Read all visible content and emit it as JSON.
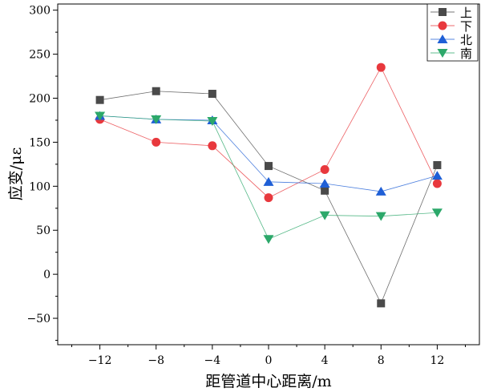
{
  "chart_data": {
    "type": "line",
    "xlabel": "距管道中心距离/m",
    "ylabel": "应变/με",
    "xlim": [
      -15,
      15
    ],
    "ylim": [
      -80,
      307
    ],
    "xticks": [
      -12,
      -8,
      -4,
      0,
      4,
      8,
      12
    ],
    "yticks": [
      -50,
      0,
      50,
      100,
      150,
      200,
      250,
      300
    ],
    "x": [
      -12,
      -8,
      -4,
      0,
      4,
      8,
      12
    ],
    "legend_position": "top-right",
    "grid": false,
    "series": [
      {
        "name": "上",
        "marker": "square",
        "color": "#4a4a4a",
        "values": [
          198,
          208,
          205,
          123,
          95,
          -33,
          124
        ]
      },
      {
        "name": "下",
        "marker": "circle",
        "color": "#e8383d",
        "values": [
          176,
          150,
          146,
          87,
          119,
          235,
          103
        ]
      },
      {
        "name": "北",
        "marker": "triangle-up",
        "color": "#1f5fd6",
        "values": [
          180,
          176,
          175,
          105,
          103,
          94,
          112
        ]
      },
      {
        "name": "南",
        "marker": "triangle-down",
        "color": "#2ca86a",
        "values": [
          180,
          176,
          174,
          40,
          67,
          66,
          70
        ]
      }
    ]
  }
}
